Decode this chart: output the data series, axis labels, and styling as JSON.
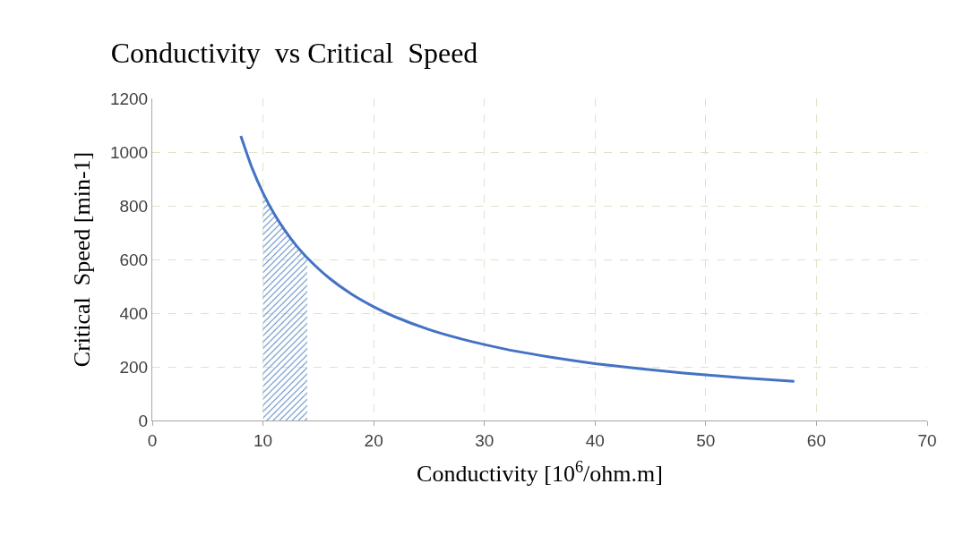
{
  "chart_data": {
    "type": "line",
    "title": "Conductivity  vs Critical  Speed",
    "xlabel": "Conductivity [10$^{6}$/ohm.m]",
    "ylabel": "Critical  Speed [min-1]",
    "xlim": [
      0,
      70
    ],
    "xticks": [
      0,
      10,
      20,
      30,
      40,
      50,
      60,
      70
    ],
    "ylim": [
      0,
      1200
    ],
    "yticks": [
      0,
      200,
      400,
      600,
      800,
      1000,
      1200
    ],
    "grid": true,
    "legend": false,
    "line_style": "solid",
    "marker": "none",
    "series": [
      {
        "type": "area",
        "color": "#4f81bd",
        "x": [
          10,
          11,
          12,
          13,
          14
        ],
        "values": [
          848,
          771,
          707,
          652,
          606
        ]
      },
      {
        "color": "#4472c4",
        "x": [
          8,
          9,
          10,
          11,
          12,
          13,
          14,
          16,
          18,
          20,
          22,
          25,
          28,
          30,
          33,
          36,
          40,
          44,
          48,
          52,
          55,
          58
        ],
        "values": [
          1060,
          942,
          848,
          771,
          707,
          652,
          606,
          530,
          471,
          424,
          385,
          339,
          303,
          283,
          257,
          236,
          212,
          193,
          177,
          163,
          154,
          146
        ]
      }
    ]
  }
}
